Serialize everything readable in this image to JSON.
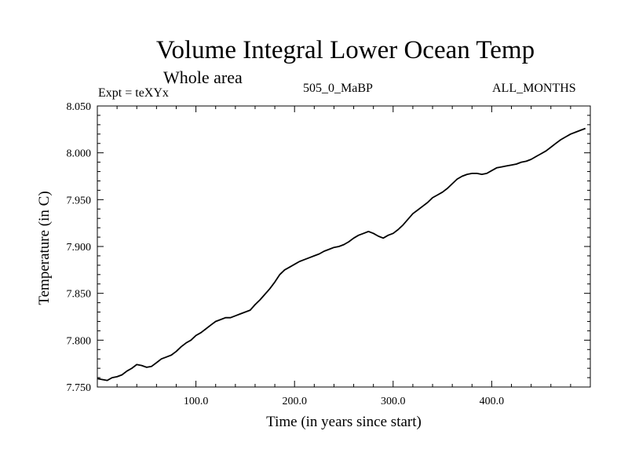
{
  "header": {
    "title": "Volume Integral Lower Ocean Temp",
    "subtitle": "Whole area",
    "expt_label": "Expt = teXYx",
    "center_label": "505_0_MaBP",
    "right_label": "ALL_MONTHS"
  },
  "chart_data": {
    "type": "line",
    "title": "Volume Integral Lower Ocean Temp",
    "subtitle": "Whole area",
    "xlabel": "Time (in years since start)",
    "ylabel": "Temperature (in C)",
    "xlim": [
      0,
      500
    ],
    "ylim": [
      7.75,
      8.05
    ],
    "x_ticks": [
      100,
      200,
      300,
      400
    ],
    "x_tick_labels": [
      "100.0",
      "200.0",
      "300.0",
      "400.0"
    ],
    "y_ticks": [
      7.75,
      7.8,
      7.85,
      7.9,
      7.95,
      8.0,
      8.05
    ],
    "y_tick_labels": [
      "7.750",
      "7.800",
      "7.850",
      "7.900",
      "7.950",
      "8.000",
      "8.050"
    ],
    "grid": false,
    "series": [
      {
        "color": "#000000",
        "points": [
          [
            0,
            7.759
          ],
          [
            5,
            7.758
          ],
          [
            10,
            7.757
          ],
          [
            15,
            7.76
          ],
          [
            20,
            7.761
          ],
          [
            25,
            7.763
          ],
          [
            30,
            7.767
          ],
          [
            35,
            7.77
          ],
          [
            40,
            7.774
          ],
          [
            45,
            7.773
          ],
          [
            50,
            7.771
          ],
          [
            55,
            7.772
          ],
          [
            60,
            7.776
          ],
          [
            65,
            7.78
          ],
          [
            70,
            7.782
          ],
          [
            75,
            7.784
          ],
          [
            80,
            7.788
          ],
          [
            85,
            7.793
          ],
          [
            90,
            7.797
          ],
          [
            95,
            7.8
          ],
          [
            100,
            7.805
          ],
          [
            105,
            7.808
          ],
          [
            110,
            7.812
          ],
          [
            115,
            7.816
          ],
          [
            120,
            7.82
          ],
          [
            125,
            7.822
          ],
          [
            130,
            7.824
          ],
          [
            135,
            7.824
          ],
          [
            140,
            7.826
          ],
          [
            145,
            7.828
          ],
          [
            150,
            7.83
          ],
          [
            155,
            7.832
          ],
          [
            160,
            7.838
          ],
          [
            165,
            7.843
          ],
          [
            170,
            7.849
          ],
          [
            175,
            7.855
          ],
          [
            180,
            7.862
          ],
          [
            185,
            7.87
          ],
          [
            190,
            7.875
          ],
          [
            195,
            7.878
          ],
          [
            200,
            7.881
          ],
          [
            205,
            7.884
          ],
          [
            210,
            7.886
          ],
          [
            215,
            7.888
          ],
          [
            220,
            7.89
          ],
          [
            225,
            7.892
          ],
          [
            230,
            7.895
          ],
          [
            235,
            7.897
          ],
          [
            240,
            7.899
          ],
          [
            245,
            7.9
          ],
          [
            250,
            7.902
          ],
          [
            255,
            7.905
          ],
          [
            260,
            7.909
          ],
          [
            265,
            7.912
          ],
          [
            270,
            7.914
          ],
          [
            275,
            7.916
          ],
          [
            280,
            7.914
          ],
          [
            285,
            7.911
          ],
          [
            290,
            7.909
          ],
          [
            295,
            7.912
          ],
          [
            300,
            7.914
          ],
          [
            305,
            7.918
          ],
          [
            310,
            7.923
          ],
          [
            315,
            7.929
          ],
          [
            320,
            7.935
          ],
          [
            325,
            7.939
          ],
          [
            330,
            7.943
          ],
          [
            335,
            7.947
          ],
          [
            340,
            7.952
          ],
          [
            345,
            7.955
          ],
          [
            350,
            7.958
          ],
          [
            355,
            7.962
          ],
          [
            360,
            7.967
          ],
          [
            365,
            7.972
          ],
          [
            370,
            7.975
          ],
          [
            375,
            7.977
          ],
          [
            380,
            7.978
          ],
          [
            385,
            7.978
          ],
          [
            390,
            7.977
          ],
          [
            395,
            7.978
          ],
          [
            400,
            7.981
          ],
          [
            405,
            7.984
          ],
          [
            410,
            7.985
          ],
          [
            415,
            7.986
          ],
          [
            420,
            7.987
          ],
          [
            425,
            7.988
          ],
          [
            430,
            7.99
          ],
          [
            435,
            7.991
          ],
          [
            440,
            7.993
          ],
          [
            445,
            7.996
          ],
          [
            450,
            7.999
          ],
          [
            455,
            8.002
          ],
          [
            460,
            8.006
          ],
          [
            465,
            8.01
          ],
          [
            470,
            8.014
          ],
          [
            475,
            8.017
          ],
          [
            480,
            8.02
          ],
          [
            485,
            8.022
          ],
          [
            490,
            8.024
          ],
          [
            495,
            8.026
          ]
        ]
      }
    ]
  }
}
